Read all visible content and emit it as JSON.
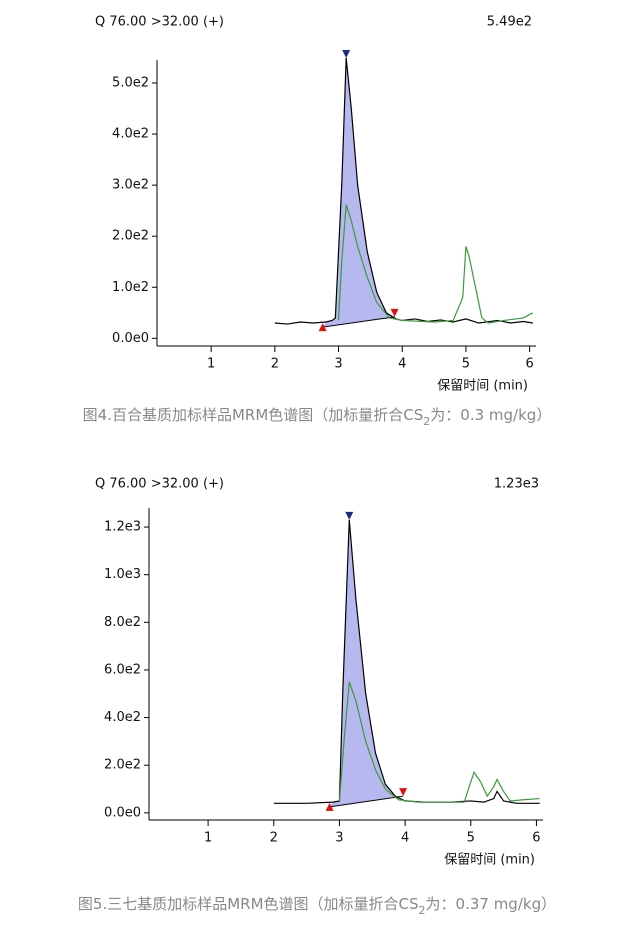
{
  "chart_data": [
    {
      "type": "line",
      "title": "Q 76.00 >32.00 (+)",
      "annotation": "5.49e2",
      "x_label": "保留时间 (min)",
      "caption": {
        "text": "图4.百合基质加标样品MRM色谱图（加标量折合CS",
        "subscript": "2",
        "after": "为：0.3 mg/kg）"
      },
      "xlim": [
        0.15,
        6.1
      ],
      "xticks": [
        1,
        2,
        3,
        4,
        5,
        6
      ],
      "ylim": [
        -15,
        545
      ],
      "yticks": [
        {
          "value": 0,
          "label": "0.0e0"
        },
        {
          "value": 100,
          "label": "1.0e2"
        },
        {
          "value": 200,
          "label": "2.0e2"
        },
        {
          "value": 300,
          "label": "3.0e2"
        },
        {
          "value": 400,
          "label": "4.0e2"
        },
        {
          "value": 500,
          "label": "5.0e2"
        }
      ],
      "series": [
        {
          "color": "#000000",
          "x": [
            2.0,
            2.2,
            2.4,
            2.6,
            2.8,
            2.9,
            2.95,
            3.05,
            3.12,
            3.2,
            3.3,
            3.45,
            3.6,
            3.75,
            3.9,
            4.0,
            4.2,
            4.4,
            4.6,
            4.8,
            5.0,
            5.2,
            5.5,
            5.7,
            5.9,
            6.05
          ],
          "values": [
            30,
            28,
            32,
            30,
            32,
            35,
            40,
            300,
            549,
            450,
            300,
            170,
            90,
            50,
            38,
            35,
            38,
            33,
            36,
            32,
            38,
            30,
            35,
            30,
            33,
            30
          ]
        },
        {
          "color": "#3a9a3a",
          "x": [
            3.0,
            3.05,
            3.12,
            3.2,
            3.3,
            3.45,
            3.6,
            3.8,
            4.0,
            4.5,
            4.8,
            4.95,
            5.0,
            5.05,
            5.15,
            5.25,
            5.35,
            5.6,
            5.9,
            6.05
          ],
          "values": [
            35,
            150,
            262,
            230,
            180,
            120,
            70,
            40,
            35,
            32,
            35,
            80,
            180,
            160,
            100,
            40,
            30,
            35,
            40,
            50
          ]
        }
      ],
      "peak": {
        "color": "#b8b8f0",
        "start": {
          "x": 2.75,
          "y": 22
        },
        "apex": {
          "x": 3.12,
          "y": 549
        },
        "end": {
          "x": 3.88,
          "y": 42
        }
      }
    },
    {
      "type": "line",
      "title": "Q 76.00 >32.00 (+)",
      "annotation": "1.23e3",
      "x_label": "保留时间 (min)",
      "caption": {
        "text": "图5.三七基质加标样品MRM色谱图（加标量折合CS",
        "subscript": "2",
        "after": "为：0.37 mg/kg）"
      },
      "xlim": [
        0.1,
        6.1
      ],
      "xticks": [
        1,
        2,
        3,
        4,
        5,
        6
      ],
      "ylim": [
        -30,
        1280
      ],
      "yticks": [
        {
          "value": 0,
          "label": "0.0e0"
        },
        {
          "value": 200,
          "label": "2.0e2"
        },
        {
          "value": 400,
          "label": "4.0e2"
        },
        {
          "value": 600,
          "label": "6.0e2"
        },
        {
          "value": 800,
          "label": "8.0e2"
        },
        {
          "value": 1000,
          "label": "1.0e3"
        },
        {
          "value": 1200,
          "label": "1.2e3"
        }
      ],
      "series": [
        {
          "color": "#000000",
          "x": [
            2.0,
            2.5,
            2.9,
            3.0,
            3.05,
            3.15,
            3.25,
            3.4,
            3.55,
            3.7,
            3.85,
            4.0,
            4.3,
            4.7,
            5.0,
            5.2,
            5.35,
            5.4,
            5.5,
            5.7,
            6.05
          ],
          "values": [
            40,
            40,
            45,
            50,
            500,
            1230,
            900,
            500,
            250,
            120,
            70,
            50,
            45,
            45,
            50,
            45,
            60,
            90,
            50,
            40,
            40
          ]
        },
        {
          "color": "#3a9a3a",
          "x": [
            3.0,
            3.07,
            3.15,
            3.25,
            3.4,
            3.55,
            3.7,
            3.9,
            4.2,
            4.9,
            5.0,
            5.05,
            5.15,
            5.25,
            5.35,
            5.4,
            5.5,
            5.6,
            5.8,
            6.05
          ],
          "values": [
            50,
            300,
            550,
            470,
            300,
            180,
            100,
            55,
            45,
            45,
            130,
            170,
            130,
            70,
            110,
            140,
            90,
            50,
            55,
            60
          ]
        }
      ],
      "peak": {
        "color": "#b8b8f0",
        "start": {
          "x": 2.85,
          "y": 25
        },
        "apex": {
          "x": 3.15,
          "y": 1230
        },
        "end": {
          "x": 3.97,
          "y": 70
        }
      }
    }
  ]
}
